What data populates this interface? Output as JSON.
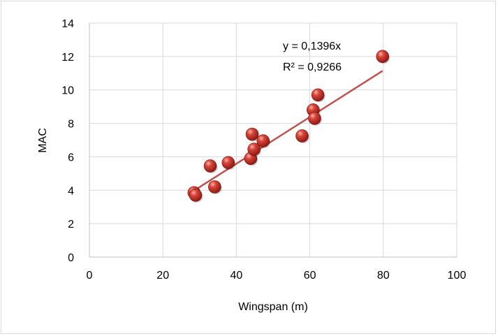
{
  "chart_data": {
    "type": "scatter",
    "title": "",
    "xlabel": "Wingspan (m)",
    "ylabel": "MAC",
    "xlim": [
      0,
      100
    ],
    "ylim": [
      0,
      14
    ],
    "x_ticks": [
      0,
      20,
      40,
      60,
      80,
      100
    ],
    "y_ticks": [
      0,
      2,
      4,
      6,
      8,
      10,
      12,
      14
    ],
    "grid": true,
    "legend": "none",
    "marker_color": "#c0392b",
    "trendline_color": "#c0504d",
    "series": [
      {
        "points": [
          {
            "x": 28.5,
            "y": 3.85
          },
          {
            "x": 28.9,
            "y": 3.7
          },
          {
            "x": 32.9,
            "y": 5.45
          },
          {
            "x": 34.1,
            "y": 4.2
          },
          {
            "x": 37.8,
            "y": 5.65
          },
          {
            "x": 43.9,
            "y": 5.9
          },
          {
            "x": 44.3,
            "y": 7.35
          },
          {
            "x": 44.8,
            "y": 6.45
          },
          {
            "x": 47.3,
            "y": 6.95
          },
          {
            "x": 57.9,
            "y": 7.25
          },
          {
            "x": 60.9,
            "y": 8.8
          },
          {
            "x": 61.3,
            "y": 8.3
          },
          {
            "x": 62.2,
            "y": 9.7
          },
          {
            "x": 79.8,
            "y": 12.0
          }
        ]
      }
    ],
    "trendline": {
      "slope": 0.1396,
      "x_start": 28.5,
      "x_end": 79.8,
      "equation": "y = 0,1396x",
      "r_squared": "R² = 0,9266"
    }
  }
}
